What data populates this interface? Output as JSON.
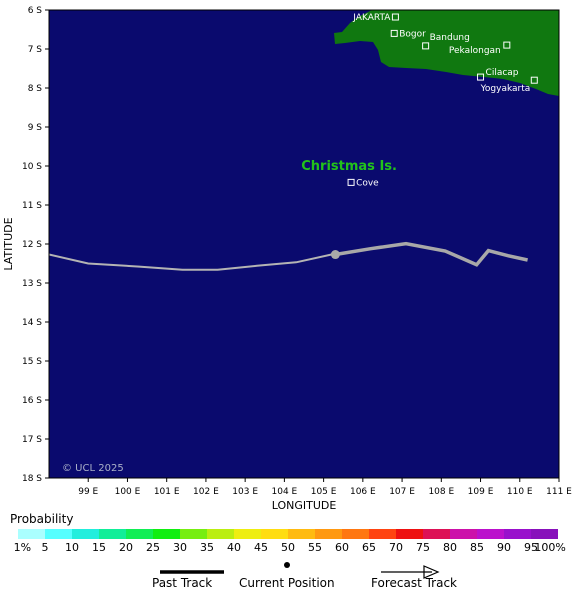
{
  "map": {
    "axis": {
      "x_title": "LONGITUDE",
      "y_title": "LATITUDE",
      "lon_range": [
        98,
        111
      ],
      "lat_range": [
        -6,
        -18
      ],
      "x_ticks": [
        {
          "lon": 99,
          "label": "99 E"
        },
        {
          "lon": 100,
          "label": "100 E"
        },
        {
          "lon": 101,
          "label": "101 E"
        },
        {
          "lon": 102,
          "label": "102 E"
        },
        {
          "lon": 103,
          "label": "103 E"
        },
        {
          "lon": 104,
          "label": "104 E"
        },
        {
          "lon": 105,
          "label": "105 E"
        },
        {
          "lon": 106,
          "label": "106 E"
        },
        {
          "lon": 107,
          "label": "107 E"
        },
        {
          "lon": 108,
          "label": "108 E"
        },
        {
          "lon": 109,
          "label": "109 E"
        },
        {
          "lon": 110,
          "label": "110 E"
        },
        {
          "lon": 111,
          "label": "111 E"
        }
      ],
      "y_ticks": [
        {
          "lat": -6,
          "label": "6 S"
        },
        {
          "lat": -7,
          "label": "7 S"
        },
        {
          "lat": -8,
          "label": "8 S"
        },
        {
          "lat": -9,
          "label": "9 S"
        },
        {
          "lat": -10,
          "label": "10 S"
        },
        {
          "lat": -11,
          "label": "11 S"
        },
        {
          "lat": -12,
          "label": "12 S"
        },
        {
          "lat": -13,
          "label": "13 S"
        },
        {
          "lat": -14,
          "label": "14 S"
        },
        {
          "lat": -15,
          "label": "15 S"
        },
        {
          "lat": -16,
          "label": "16 S"
        },
        {
          "lat": -17,
          "label": "17 S"
        },
        {
          "lat": -18,
          "label": "18 S"
        }
      ]
    },
    "colors": {
      "ocean": "#0a0a6e",
      "land": "#107810",
      "past_track": "#b4b4b4",
      "forecast_track": "#a8a8a8",
      "island_label": "#22c31a"
    },
    "places": [
      {
        "name": "JAKARTA",
        "lon": 106.83,
        "lat": -6.18
      },
      {
        "name": "Bogor",
        "lon": 106.8,
        "lat": -6.6
      },
      {
        "name": "Bandung",
        "lon": 107.6,
        "lat": -6.92
      },
      {
        "name": "Pekalongan",
        "lon": 109.67,
        "lat": -6.9
      },
      {
        "name": "Cilacap",
        "lon": 109.0,
        "lat": -7.72
      },
      {
        "name": "Yogyakarta",
        "lon": 110.37,
        "lat": -7.8
      },
      {
        "name": "Cove",
        "lon": 105.7,
        "lat": -10.42
      }
    ],
    "island_label": {
      "name": "Christmas Is.",
      "lon": 105.65,
      "lat": -10.0
    },
    "past_track": [
      {
        "lon": 98.0,
        "lat": -12.27
      },
      {
        "lon": 99.0,
        "lat": -12.5
      },
      {
        "lon": 100.3,
        "lat": -12.58
      },
      {
        "lon": 101.4,
        "lat": -12.66
      },
      {
        "lon": 102.3,
        "lat": -12.66
      },
      {
        "lon": 103.3,
        "lat": -12.56
      },
      {
        "lon": 104.3,
        "lat": -12.47
      },
      {
        "lon": 105.2,
        "lat": -12.27
      }
    ],
    "current_position": {
      "lon": 105.3,
      "lat": -12.27
    },
    "forecast_track": [
      {
        "lon": 105.3,
        "lat": -12.27
      },
      {
        "lon": 106.2,
        "lat": -12.12
      },
      {
        "lon": 107.1,
        "lat": -11.99
      },
      {
        "lon": 108.1,
        "lat": -12.18
      },
      {
        "lon": 108.9,
        "lat": -12.53
      },
      {
        "lon": 109.2,
        "lat": -12.17
      },
      {
        "lon": 109.7,
        "lat": -12.3
      },
      {
        "lon": 110.2,
        "lat": -12.41
      }
    ],
    "copyright": "© UCL 2025"
  },
  "probability": {
    "title": "Probability",
    "labels": [
      "1%",
      "5",
      "10",
      "15",
      "20",
      "25",
      "30",
      "35",
      "40",
      "45",
      "50",
      "55",
      "60",
      "65",
      "70",
      "75",
      "80",
      "85",
      "90",
      "95",
      "100%"
    ],
    "colors": [
      "#aaffff",
      "#55ffff",
      "#22eedd",
      "#11ee99",
      "#11ee55",
      "#11ee11",
      "#77ee11",
      "#bbee11",
      "#eeee11",
      "#ffdd11",
      "#ffbb11",
      "#ff9911",
      "#ff7711",
      "#ff4411",
      "#ee1111",
      "#dd1155",
      "#cc11aa",
      "#bb11cc",
      "#9911cc",
      "#8811bb"
    ]
  },
  "legend": {
    "past_track": "Past Track",
    "current_position": "Current Position",
    "forecast_track": "Forecast Track"
  }
}
